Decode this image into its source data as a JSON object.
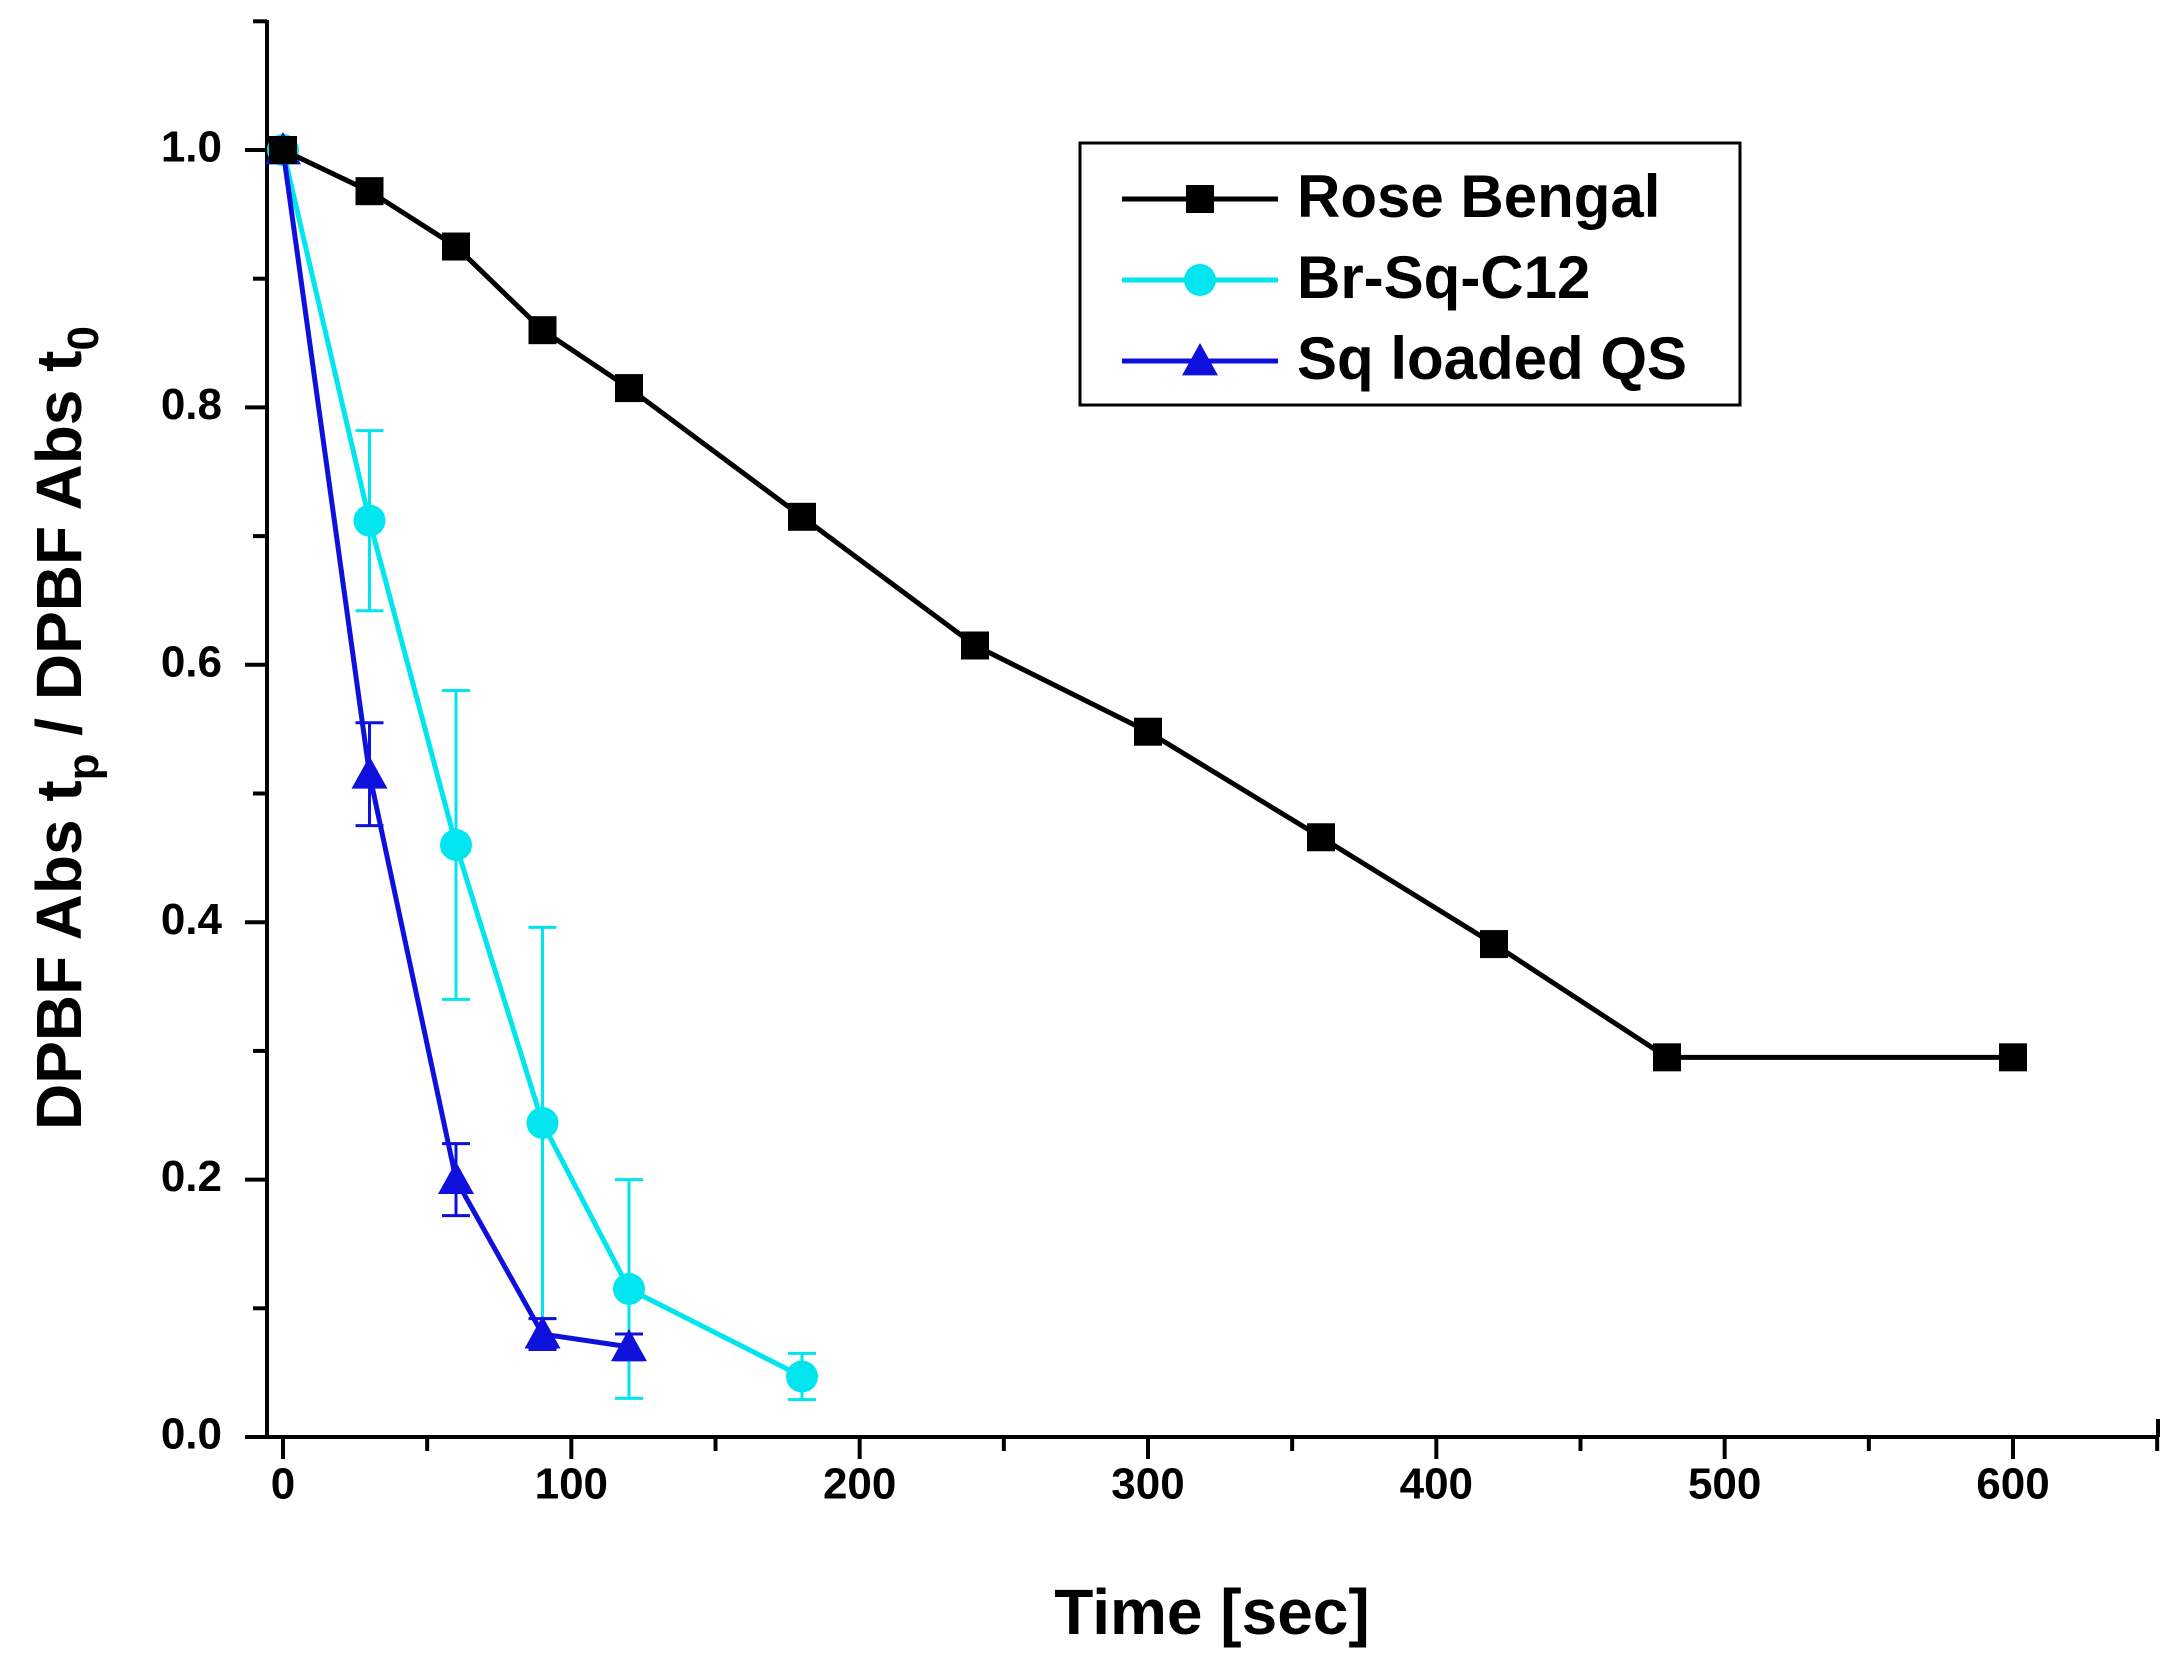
{
  "chart_data": {
    "type": "line",
    "title": "",
    "xlabel": "Time [sec]",
    "ylabel_parts": {
      "main": "DPBF Abs t",
      "sub1": "p",
      "middle": " / DPBF Abs t",
      "sub2": "0"
    },
    "xlim": [
      -5,
      650
    ],
    "ylim": [
      0,
      1.1
    ],
    "xticks": [
      0,
      100,
      200,
      300,
      400,
      500,
      600
    ],
    "xtick_labels": [
      "0",
      "100",
      "200",
      "300",
      "400",
      "500",
      "600"
    ],
    "yticks": [
      0.0,
      0.2,
      0.4,
      0.6,
      0.8,
      1.0
    ],
    "ytick_labels": [
      "0.0",
      "0.2",
      "0.4",
      "0.6",
      "0.8",
      "1.0"
    ],
    "legend_position": "top-right",
    "series": [
      {
        "name": "Rose Bengal",
        "color": "#000000",
        "marker": "square",
        "x": [
          0,
          30,
          60,
          90,
          120,
          180,
          240,
          300,
          360,
          420,
          480,
          600
        ],
        "y": [
          1.0,
          0.968,
          0.925,
          0.86,
          0.815,
          0.715,
          0.615,
          0.548,
          0.466,
          0.383,
          0.295,
          0.295
        ],
        "err": null
      },
      {
        "name": "Br-Sq-C12",
        "color": "#00E5EE",
        "marker": "circle",
        "x": [
          0,
          30,
          60,
          90,
          120,
          180
        ],
        "y": [
          1.0,
          0.712,
          0.46,
          0.244,
          0.115,
          0.047
        ],
        "err": [
          0.0,
          0.07,
          0.12,
          0.152,
          0.085,
          0.018
        ]
      },
      {
        "name": "Sq loaded QS",
        "color": "#1010DD",
        "marker": "triangle",
        "x": [
          0,
          30,
          60,
          90,
          120
        ],
        "y": [
          1.0,
          0.515,
          0.2,
          0.08,
          0.07
        ],
        "err": [
          0.0,
          0.04,
          0.028,
          0.012,
          0.01
        ]
      }
    ]
  }
}
